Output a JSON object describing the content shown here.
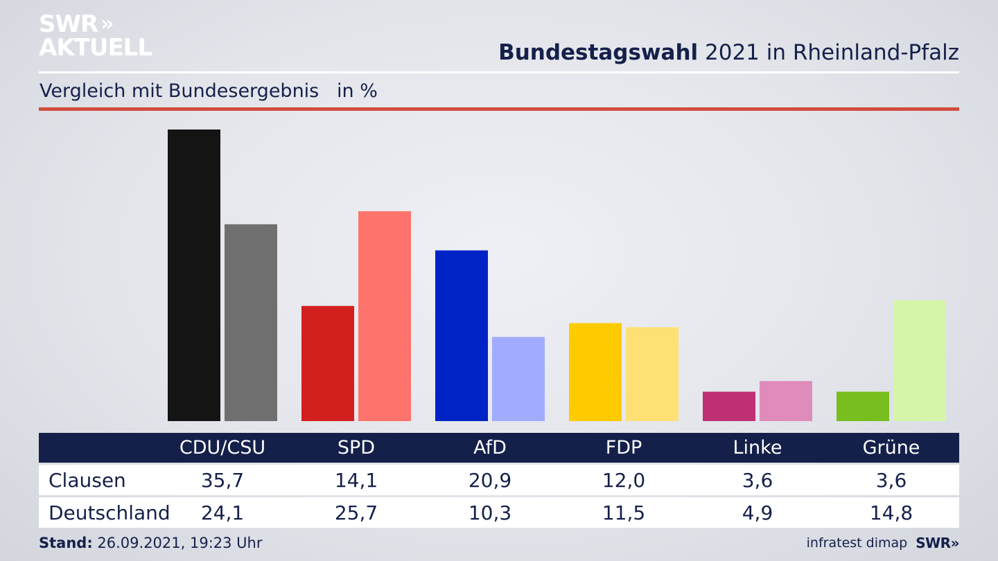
{
  "logo": {
    "line1": "SWR",
    "chevrons": "»",
    "line2": "AKTUELL"
  },
  "title": {
    "bold": "Bundestagswahl",
    "rest": " 2021 in Rheinland-Pfalz"
  },
  "subtitle": "Vergleich mit Bundesergebnis   in %",
  "chart_data": {
    "type": "bar",
    "categories": [
      "CDU/CSU",
      "SPD",
      "AfD",
      "FDP",
      "Linke",
      "Grüne"
    ],
    "series": [
      {
        "name": "Clausen",
        "values": [
          35.7,
          14.1,
          20.9,
          12.0,
          3.6,
          3.6
        ],
        "display": [
          "35,7",
          "14,1",
          "20,9",
          "12,0",
          "3,6",
          "3,6"
        ],
        "colors": [
          "#141414",
          "#d41f1f",
          "#0023c6",
          "#fecb00",
          "#be2f74",
          "#78be1e"
        ]
      },
      {
        "name": "Deutschland",
        "values": [
          24.1,
          25.7,
          10.3,
          11.5,
          4.9,
          14.8
        ],
        "display": [
          "24,1",
          "25,7",
          "10,3",
          "11,5",
          "4,9",
          "14,8"
        ],
        "colors": [
          "#706f6f",
          "#fe746c",
          "#a0acff",
          "#fee074",
          "#e08cbb",
          "#d5f5a8"
        ]
      }
    ],
    "ylim": [
      0,
      35.7
    ]
  },
  "footer": {
    "stand_label": "Stand:",
    "stand_value": " 26.09.2021, 19:23 Uhr",
    "source": "infratest dimap",
    "brand": "SWR»"
  }
}
